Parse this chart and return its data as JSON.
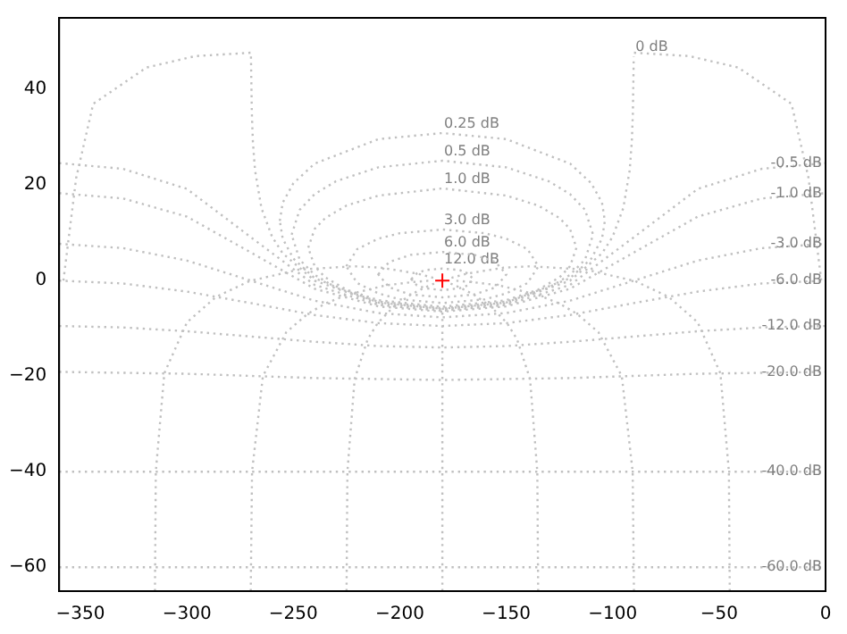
{
  "chart_data": {
    "type": "line",
    "xlim": [
      -360,
      0
    ],
    "ylim": [
      -65,
      55
    ],
    "xticks": [
      -350,
      -300,
      -250,
      -200,
      -150,
      -100,
      -50,
      0
    ],
    "yticks": [
      -60,
      -40,
      -20,
      0,
      20,
      40
    ],
    "grid": false,
    "legend": false,
    "line_style": "dotted",
    "series": [
      {
        "color": "#c0c0c0",
        "x": [
          -360,
          -330,
          -300,
          -270,
          -240,
          -210,
          -180,
          -150,
          -120,
          -90,
          -60,
          -30,
          0
        ],
        "values": [
          24.6,
          23.4,
          19.2,
          9.1,
          -0.9,
          -5.1,
          -6.3,
          -5.1,
          -0.9,
          9.1,
          19.2,
          23.4,
          24.6
        ]
      },
      {
        "color": "#c0c0c0",
        "x": [
          -360,
          -330,
          -300,
          -270,
          -240,
          -210,
          -180,
          -150,
          -120,
          -90,
          -60,
          -30,
          0
        ],
        "values": [
          18.3,
          17.2,
          13.4,
          5.9,
          -1.7,
          -5.4,
          -6.5,
          -5.4,
          -1.7,
          5.9,
          13.4,
          17.2,
          18.3
        ]
      },
      {
        "color": "#c0c0c0",
        "x": [
          -360,
          -330,
          -300,
          -270,
          -240,
          -210,
          -180,
          -150,
          -120,
          -90,
          -60,
          -30,
          0
        ],
        "values": [
          7.7,
          6.8,
          4.2,
          0,
          -4.2,
          -6.8,
          -7.7,
          -6.8,
          -4.2,
          0,
          4.2,
          6.8,
          7.7
        ]
      },
      {
        "color": "#c0c0c0",
        "x": [
          -360,
          -330,
          -300,
          -270,
          -240,
          -210,
          -180,
          -150,
          -120,
          -90,
          -60,
          -30,
          0
        ],
        "values": [
          0,
          -0.6,
          -2.3,
          -4.7,
          -7.2,
          -8.9,
          -9.5,
          -8.9,
          -7.2,
          -4.7,
          -2.3,
          -0.6,
          0
        ]
      },
      {
        "color": "#c0c0c0",
        "x": [
          -360,
          -330,
          -300,
          -270,
          -240,
          -210,
          -180,
          -150,
          -120,
          -90,
          -60,
          -30,
          0
        ],
        "values": [
          -9.5,
          -9.8,
          -10.6,
          -11.7,
          -12.8,
          -13.7,
          -14,
          -13.7,
          -12.8,
          -11.7,
          -10.6,
          -9.8,
          -9.5
        ]
      },
      {
        "color": "#c0c0c0",
        "x": [
          -360,
          -300,
          -240,
          -180,
          -120,
          -60,
          0
        ],
        "values": [
          -19.1,
          -19.5,
          -20.4,
          -20.8,
          -20.4,
          -19.5,
          -19.1
        ]
      },
      {
        "color": "#c0c0c0",
        "x": [
          -360,
          -180,
          0
        ],
        "values": [
          -40,
          -40,
          -40
        ]
      },
      {
        "color": "#c0c0c0",
        "x": [
          -360,
          -180,
          0
        ],
        "values": [
          -60,
          -60,
          -60
        ]
      },
      {
        "color": "#c0c0c0",
        "x": [
          -269.9,
          -269.5,
          -269,
          -268,
          -265,
          -260,
          -255,
          -240,
          -210,
          -180,
          -150,
          -120,
          -105,
          -100,
          -95,
          -92,
          -91,
          -90.5,
          -90.1
        ],
        "values": [
          46.9,
          35.2,
          29.1,
          23.1,
          15.2,
          9.2,
          5.7,
          0,
          -4.8,
          -6,
          -4.8,
          0,
          5.7,
          9.2,
          15.2,
          23.1,
          29.1,
          35.2,
          46.9
        ]
      },
      {
        "color": "#c0c0c0",
        "x": [
          -45,
          -45.4,
          -49.4,
          -60.1,
          -73.7,
          -89.4,
          -112.5,
          -138.3,
          -151.3,
          -167.9,
          -175.7
        ],
        "values": [
          -65,
          -40,
          -19.4,
          -8.7,
          -3.4,
          -0.1,
          2.3,
          3,
          2.7,
          1.5,
          0.6
        ]
      },
      {
        "color": "#c0c0c0",
        "x": [
          -315,
          -314.6,
          -310.6,
          -299.9,
          -286.3,
          -270.6,
          -247.5,
          -221.7,
          -208.7,
          -192.1,
          -184.3
        ],
        "values": [
          -65,
          -40,
          -19.4,
          -8.7,
          -3.4,
          -0.1,
          2.3,
          3,
          2.7,
          1.5,
          0.6
        ]
      },
      {
        "color": "#c0c0c0",
        "x": [
          -90,
          -90.6,
          -95.7,
          -106.7,
          -116.6,
          -125,
          -135,
          -153.4,
          -166,
          -174.3
        ],
        "values": [
          -65,
          -40,
          -20,
          -10.8,
          -7,
          -4.8,
          -3,
          -1,
          -0.3,
          0
        ]
      },
      {
        "color": "#c0c0c0",
        "x": [
          -270,
          -269.4,
          -264.3,
          -253.3,
          -243.4,
          -235,
          -225,
          -206.6,
          -194,
          -185.7
        ],
        "values": [
          -65,
          -40,
          -20,
          -10.8,
          -7,
          -4.8,
          -3,
          -1,
          -0.3,
          0
        ]
      },
      {
        "color": "#c0c0c0",
        "x": [
          -135,
          -135.4,
          -138.8,
          -144.9,
          -149.6,
          -157.5,
          -165.4,
          -171.5,
          -176.2
        ],
        "values": [
          -65,
          -40,
          -20.6,
          -12.3,
          -8.9,
          -5.3,
          -2.9,
          -1.5,
          -0.6
        ]
      },
      {
        "color": "#c0c0c0",
        "x": [
          -225,
          -224.6,
          -221.2,
          -215.1,
          -210.4,
          -202.5,
          -194.6,
          -188.5,
          -183.8
        ],
        "values": [
          -65,
          -40,
          -20.6,
          -12.3,
          -8.9,
          -5.3,
          -2.9,
          -1.5,
          -0.6
        ]
      },
      {
        "color": "#c0c0c0",
        "x": [
          -180,
          -180,
          -180,
          -180,
          -180
        ],
        "values": [
          -65,
          -40,
          -20.8,
          -9.5,
          -6
        ]
      },
      {
        "color": "#c0c0c0",
        "x": [
          -358,
          -352,
          -344,
          -319,
          -296,
          -270
        ],
        "values": [
          0,
          21.5,
          37,
          44.6,
          47,
          47.7
        ]
      },
      {
        "color": "#c0c0c0",
        "x": [
          -90,
          -64,
          -41,
          -16,
          -8,
          -2
        ],
        "values": [
          47.7,
          47,
          44.6,
          37,
          21.5,
          0
        ]
      },
      {
        "type": "scatter",
        "marker": "cross",
        "color": "#ff0000",
        "x": [
          -180
        ],
        "values": [
          0
        ]
      }
    ],
    "annotations": [
      "0 dB",
      "0.25 dB",
      "0.5 dB",
      "1.0 dB",
      "3.0 dB",
      "6.0 dB",
      "12.0 dB",
      "-0.5 dB",
      "-1.0 dB",
      "-3.0 dB",
      "-6.0 dB",
      "-12.0 dB",
      "-20.0 dB",
      "-40.0 dB",
      "-60.0 dB"
    ]
  }
}
